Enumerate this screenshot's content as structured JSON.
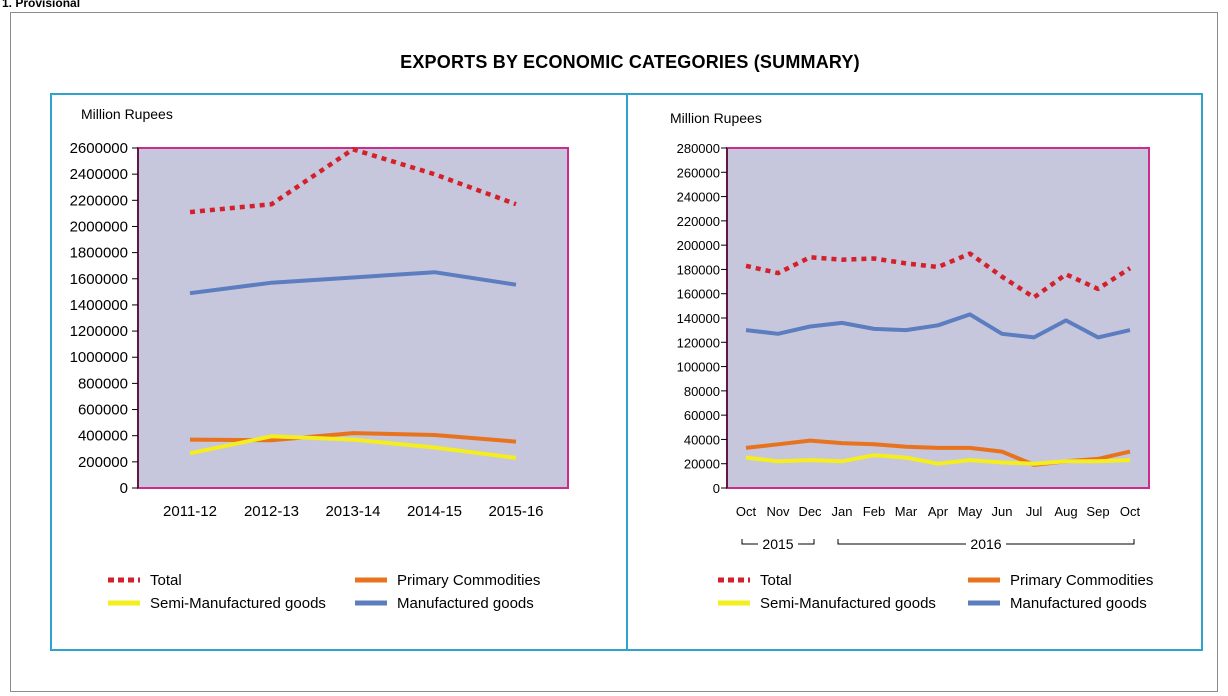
{
  "header": {
    "note": "1. Provisional"
  },
  "title": "EXPORTS BY ECONOMIC CATEGORIES (SUMMARY)",
  "colors": {
    "plot_bg": "#c6c6dd",
    "plot_border": "#cc2d8d",
    "frame": "#2ea3cf",
    "total": "#d4202a",
    "primary": "#e8731f",
    "semi": "#f4ee1e",
    "manufactured": "#5c7dbf"
  },
  "legend": {
    "total": "Total",
    "primary": "Primary Commodities",
    "semi": "Semi-Manufactured goods",
    "manufactured": "Manufactured goods"
  },
  "chart_data": [
    {
      "type": "line",
      "ylabel": "Million Rupees",
      "ylim": [
        0,
        2600000
      ],
      "ytick_step": 200000,
      "categories": [
        "2011-12",
        "2012-13",
        "2013-14",
        "2014-15",
        "2015-16"
      ],
      "series": [
        {
          "name": "Total",
          "style": "dotted",
          "values": [
            2110000,
            2170000,
            2590000,
            2400000,
            2170000
          ]
        },
        {
          "name": "Primary Commodities",
          "style": "solid",
          "values": [
            370000,
            365000,
            420000,
            405000,
            355000
          ]
        },
        {
          "name": "Semi-Manufactured goods",
          "style": "solid",
          "values": [
            265000,
            395000,
            370000,
            310000,
            230000
          ]
        },
        {
          "name": "Manufactured goods",
          "style": "solid",
          "values": [
            1490000,
            1570000,
            1610000,
            1650000,
            1555000
          ]
        }
      ],
      "grid": false,
      "legend_position": "bottom"
    },
    {
      "type": "line",
      "ylabel": "Million Rupees",
      "ylim": [
        0,
        280000
      ],
      "ytick_step": 20000,
      "categories": [
        "Oct",
        "Nov",
        "Dec",
        "Jan",
        "Feb",
        "Mar",
        "Apr",
        "May",
        "Jun",
        "Jul",
        "Aug",
        "Sep",
        "Oct"
      ],
      "year_groups": [
        {
          "label": "2015",
          "from": 0,
          "to": 2
        },
        {
          "label": "2016",
          "from": 3,
          "to": 12
        }
      ],
      "series": [
        {
          "name": "Total",
          "style": "dotted",
          "values": [
            183000,
            177000,
            190000,
            188000,
            189000,
            185000,
            182000,
            193000,
            174000,
            157000,
            176000,
            164000,
            181000
          ]
        },
        {
          "name": "Primary Commodities",
          "style": "solid",
          "values": [
            33000,
            36000,
            39000,
            37000,
            36000,
            34000,
            33000,
            33000,
            30000,
            19000,
            22000,
            24000,
            30000
          ]
        },
        {
          "name": "Semi-Manufactured goods",
          "style": "solid",
          "values": [
            25000,
            22000,
            23000,
            22000,
            27000,
            25000,
            20000,
            23000,
            21000,
            20000,
            22000,
            22000,
            23000
          ]
        },
        {
          "name": "Manufactured goods",
          "style": "solid",
          "values": [
            130000,
            127000,
            133000,
            136000,
            131000,
            130000,
            134000,
            143000,
            127000,
            124000,
            138000,
            124000,
            130000
          ]
        }
      ],
      "grid": false,
      "legend_position": "bottom"
    }
  ]
}
